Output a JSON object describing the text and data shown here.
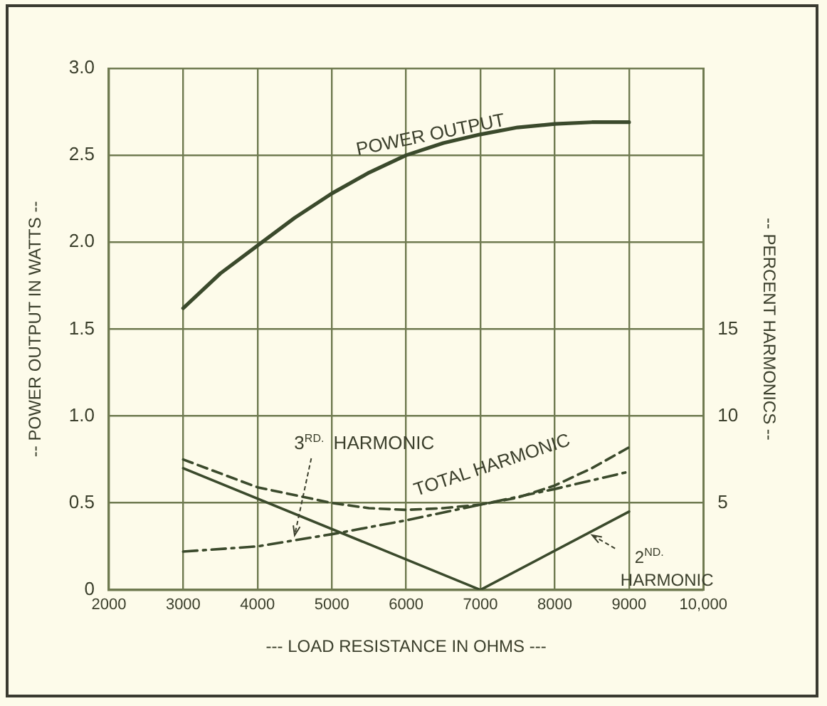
{
  "chart_data": {
    "type": "line",
    "xlabel": "--- LOAD RESISTANCE IN OHMS ---",
    "ylabel": "-- POWER OUTPUT IN WATTS --",
    "y2label": "-- PERCENT HARMONICS --",
    "xlim": [
      2000,
      10000
    ],
    "xticks": [
      2000,
      3000,
      4000,
      5000,
      6000,
      7000,
      8000,
      9000,
      {
        "value": 10000,
        "label": "10,000"
      }
    ],
    "ylim": [
      0,
      3
    ],
    "yticks": [
      0,
      0.5,
      {
        "value": 1,
        "label": "1.0"
      },
      1.5,
      {
        "value": 2,
        "label": "2.0"
      },
      2.5,
      {
        "value": 3,
        "label": "3.0"
      }
    ],
    "y2lim": [
      0,
      30
    ],
    "y2ticks": [
      5,
      10,
      15
    ],
    "grid": true,
    "legend": false,
    "marker": "none",
    "series": [
      {
        "name": "POWER OUTPUT",
        "color": "#3b4a2c",
        "line_style": "solid",
        "x": [
          3000,
          3500,
          4000,
          4500,
          5000,
          5500,
          6000,
          6500,
          7000,
          7500,
          8000,
          8500,
          9000
        ],
        "values": [
          1.62,
          1.82,
          1.98,
          2.14,
          2.28,
          2.4,
          2.5,
          2.57,
          2.62,
          2.66,
          2.68,
          2.69,
          2.69
        ]
      },
      {
        "name": "TOTAL HARMONIC",
        "color": "#3b4a2c",
        "axis": "y2",
        "line_style": "dashed",
        "x": [
          3000,
          4000,
          5000,
          5500,
          6000,
          6500,
          7000,
          7500,
          8000,
          8500,
          9000
        ],
        "values": [
          7.5,
          5.9,
          5.0,
          4.7,
          4.6,
          4.7,
          4.9,
          5.3,
          6.0,
          7.0,
          8.2
        ]
      },
      {
        "name": "3$^{RD.}$ HARMONIC",
        "color": "#3b4a2c",
        "axis": "y2",
        "line_style": "dashdot",
        "x": [
          3000,
          4000,
          5000,
          6000,
          7000,
          8000,
          9000
        ],
        "values": [
          2.2,
          2.5,
          3.2,
          4.0,
          4.9,
          5.8,
          6.8
        ]
      },
      {
        "name": "2$^{ND.}$ HARMONIC",
        "color": "#3b4a2c",
        "axis": "y2",
        "line_style": "solid",
        "x": [
          3000,
          7000,
          9000
        ],
        "values": [
          7.0,
          0,
          4.5
        ]
      }
    ]
  }
}
